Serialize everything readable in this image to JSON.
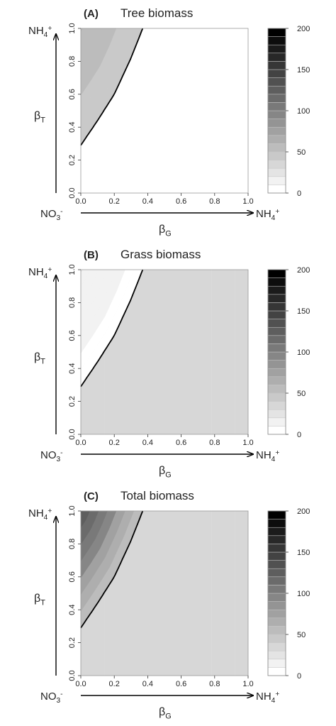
{
  "chart_data": [
    {
      "type": "heatmap",
      "panel": "(A)",
      "title": "Tree biomass",
      "xlabel": "β",
      "xlabel_sub": "G",
      "ylabel": "β",
      "ylabel_sub": "T",
      "x_left_label": "NO",
      "x_left_label_sub": "3",
      "x_left_label_sup": "-",
      "x_right_label": "NH",
      "x_right_label_sub": "4",
      "x_right_label_sup": "+",
      "y_top_label": "NH",
      "y_top_label_sub": "4",
      "y_top_label_sup": "+",
      "xlim": [
        0,
        1
      ],
      "ylim": [
        0,
        1
      ],
      "xticks": [
        "0.0",
        "0.2",
        "0.4",
        "0.6",
        "0.8",
        "1.0"
      ],
      "yticks": [
        "0.0",
        "0.2",
        "0.4",
        "0.6",
        "0.8",
        "1.0"
      ],
      "boundary_curve": {
        "x": [
          0,
          0.1,
          0.2,
          0.3,
          0.37
        ],
        "y": [
          0.29,
          0.44,
          0.6,
          0.82,
          1.0
        ]
      },
      "regions": [
        {
          "description": "left of boundary",
          "x_range": [
            0,
            0.37
          ],
          "value_range": [
            40,
            60
          ]
        },
        {
          "description": "right of boundary",
          "x_range": [
            0.0,
            1.0
          ],
          "value": 0
        }
      ]
    },
    {
      "type": "heatmap",
      "panel": "(B)",
      "title": "Grass biomass",
      "xlabel": "β",
      "xlabel_sub": "G",
      "ylabel": "β",
      "ylabel_sub": "T",
      "x_left_label": "NO",
      "x_left_label_sub": "3",
      "x_left_label_sup": "-",
      "x_right_label": "NH",
      "x_right_label_sub": "4",
      "x_right_label_sup": "+",
      "y_top_label": "NH",
      "y_top_label_sub": "4",
      "y_top_label_sup": "+",
      "xlim": [
        0,
        1
      ],
      "ylim": [
        0,
        1
      ],
      "xticks": [
        "0.0",
        "0.2",
        "0.4",
        "0.6",
        "0.8",
        "1.0"
      ],
      "yticks": [
        "0.0",
        "0.2",
        "0.4",
        "0.6",
        "0.8",
        "1.0"
      ],
      "boundary_curve": {
        "x": [
          0,
          0.1,
          0.2,
          0.3,
          0.37
        ],
        "y": [
          0.29,
          0.44,
          0.6,
          0.82,
          1.0
        ]
      },
      "regions": [
        {
          "description": "left of boundary",
          "value_range": [
            5,
            20
          ]
        },
        {
          "description": "beta_G 0-0.14",
          "x_range": [
            0,
            0.14
          ],
          "value": 33
        },
        {
          "description": "beta_G 0.14-0.78",
          "x_range": [
            0.14,
            0.78
          ],
          "value": 38
        },
        {
          "description": "beta_G 0.78-0.92",
          "x_range": [
            0.78,
            0.92
          ],
          "value": 34
        },
        {
          "description": "beta_G 0.92-1.0",
          "x_range": [
            0.92,
            1.0
          ],
          "value": 30
        }
      ]
    },
    {
      "type": "heatmap",
      "panel": "(C)",
      "title": "Total biomass",
      "xlabel": "β",
      "xlabel_sub": "G",
      "ylabel": "β",
      "ylabel_sub": "T",
      "x_left_label": "NO",
      "x_left_label_sub": "3",
      "x_left_label_sup": "-",
      "x_right_label": "NH",
      "x_right_label_sub": "4",
      "x_right_label_sup": "+",
      "y_top_label": "NH",
      "y_top_label_sub": "4",
      "y_top_label_sup": "+",
      "xlim": [
        0,
        1
      ],
      "ylim": [
        0,
        1
      ],
      "xticks": [
        "0.0",
        "0.2",
        "0.4",
        "0.6",
        "0.8",
        "1.0"
      ],
      "yticks": [
        "0.0",
        "0.2",
        "0.4",
        "0.6",
        "0.8",
        "1.0"
      ],
      "boundary_curve": {
        "x": [
          0,
          0.1,
          0.2,
          0.3,
          0.37
        ],
        "y": [
          0.29,
          0.44,
          0.6,
          0.82,
          1.0
        ]
      },
      "regions": [
        {
          "description": "left of boundary",
          "value_range": [
            50,
            130
          ]
        },
        {
          "description": "beta_G 0-0.14",
          "x_range": [
            0,
            0.14
          ],
          "value": 33
        },
        {
          "description": "beta_G 0.14-0.78",
          "x_range": [
            0.14,
            0.78
          ],
          "value": 38
        },
        {
          "description": "beta_G 0.78-0.92",
          "x_range": [
            0.78,
            0.92
          ],
          "value": 34
        },
        {
          "description": "beta_G 0.92-1.0",
          "x_range": [
            0.92,
            1.0
          ],
          "value": 30
        }
      ]
    }
  ],
  "colorbar": {
    "range": [
      0,
      200
    ],
    "levels": 20,
    "tick_labels": [
      "0",
      "50",
      "100",
      "150",
      "200"
    ],
    "tick_values": [
      0,
      50,
      100,
      150,
      200
    ],
    "color_low": "#ffffff",
    "color_high": "#000000"
  },
  "colors": {
    "curve": "#000000",
    "axis": "#333333",
    "text": "#222222"
  }
}
